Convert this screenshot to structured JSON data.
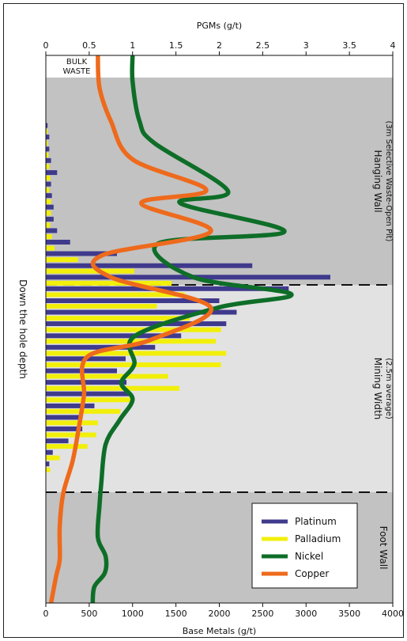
{
  "chart_data": {
    "type": "bar",
    "orientation": "horizontal",
    "x_axis_top": {
      "label": "PGMs (g/t)",
      "ticks": [
        "0",
        "0.5",
        "1",
        "1.5",
        "2",
        "2.5",
        "3",
        "3.5",
        "4"
      ],
      "range": [
        0,
        4
      ]
    },
    "x_axis_bottom": {
      "label": "Base Metals (g/t)",
      "ticks": [
        "0",
        "500",
        "1000",
        "1500",
        "2000",
        "2500",
        "3000",
        "3500",
        "4000"
      ],
      "range": [
        0,
        4000
      ]
    },
    "y_axis": {
      "label": "Down the hole depth"
    },
    "zones": [
      {
        "name": "Bulk Waste",
        "lines": [
          "BULK",
          "WASTE"
        ],
        "color": "#ffffff"
      },
      {
        "name": "Hanging Wall",
        "lines": [
          "Hanging Wall",
          "(3m Selective Waste-Open Pit)"
        ],
        "color": "#c2c2c2"
      },
      {
        "name": "Mining Width",
        "lines": [
          "Mining Width",
          "(2.5m average)"
        ],
        "color": "#e2e2e2"
      },
      {
        "name": "Foot Wall",
        "lines": [
          "Foot Wall"
        ],
        "color": "#c2c2c2"
      }
    ],
    "legend": {
      "position": "bottom-right",
      "entries": [
        {
          "name": "Platinum",
          "color": "#3f3a8c"
        },
        {
          "name": "Palladium",
          "color": "#f2ef0a"
        },
        {
          "name": "Nickel",
          "color": "#0e6e28"
        },
        {
          "name": "Copper",
          "color": "#ee6a1c"
        }
      ]
    },
    "series": [
      {
        "name": "Platinum",
        "axis": "top",
        "points": [
          [
            0.02,
            0.128
          ],
          [
            0.04,
            0.149
          ],
          [
            0.04,
            0.171
          ],
          [
            0.06,
            0.192
          ],
          [
            0.13,
            0.214
          ],
          [
            0.06,
            0.235
          ],
          [
            0.07,
            0.256
          ],
          [
            0.09,
            0.277
          ],
          [
            0.09,
            0.299
          ],
          [
            0.13,
            0.32
          ],
          [
            0.28,
            0.341
          ],
          [
            0.82,
            0.362
          ],
          [
            2.38,
            0.384
          ],
          [
            3.28,
            0.405
          ],
          [
            2.8,
            0.426
          ],
          [
            2.0,
            0.448
          ],
          [
            2.2,
            0.469
          ],
          [
            2.08,
            0.49
          ],
          [
            1.56,
            0.512
          ],
          [
            1.26,
            0.533
          ],
          [
            0.92,
            0.554
          ],
          [
            0.82,
            0.576
          ],
          [
            0.93,
            0.597
          ],
          [
            0.96,
            0.618
          ],
          [
            0.56,
            0.64
          ],
          [
            0.4,
            0.661
          ],
          [
            0.42,
            0.682
          ],
          [
            0.26,
            0.704
          ],
          [
            0.08,
            0.725
          ],
          [
            0.04,
            0.746
          ]
        ]
      },
      {
        "name": "Palladium",
        "axis": "top",
        "points": [
          [
            0.02,
            0.139
          ],
          [
            0.02,
            0.16
          ],
          [
            0.03,
            0.182
          ],
          [
            0.04,
            0.203
          ],
          [
            0.05,
            0.224
          ],
          [
            0.04,
            0.246
          ],
          [
            0.06,
            0.267
          ],
          [
            0.06,
            0.288
          ],
          [
            0.05,
            0.31
          ],
          [
            0.07,
            0.331
          ],
          [
            0.1,
            0.352
          ],
          [
            0.37,
            0.373
          ],
          [
            1.02,
            0.394
          ],
          [
            1.45,
            0.416
          ],
          [
            1.6,
            0.437
          ],
          [
            1.28,
            0.458
          ],
          [
            1.66,
            0.48
          ],
          [
            2.02,
            0.501
          ],
          [
            1.96,
            0.522
          ],
          [
            2.08,
            0.544
          ],
          [
            2.02,
            0.565
          ],
          [
            1.41,
            0.586
          ],
          [
            1.54,
            0.608
          ],
          [
            0.98,
            0.629
          ],
          [
            0.86,
            0.65
          ],
          [
            0.6,
            0.671
          ],
          [
            0.58,
            0.693
          ],
          [
            0.48,
            0.714
          ],
          [
            0.16,
            0.735
          ],
          [
            0.05,
            0.757
          ]
        ]
      },
      {
        "name": "Nickel",
        "axis": "bottom",
        "curve": [
          [
            1000,
            0
          ],
          [
            1000,
            0.048
          ],
          [
            1080,
            0.12
          ],
          [
            1250,
            0.16
          ],
          [
            2100,
            0.248
          ],
          [
            1550,
            0.27
          ],
          [
            2750,
            0.322
          ],
          [
            1300,
            0.343
          ],
          [
            1700,
            0.405
          ],
          [
            2830,
            0.436
          ],
          [
            2000,
            0.46
          ],
          [
            1030,
            0.512
          ],
          [
            1020,
            0.564
          ],
          [
            870,
            0.598
          ],
          [
            1000,
            0.628
          ],
          [
            850,
            0.666
          ],
          [
            690,
            0.71
          ],
          [
            640,
            0.78
          ],
          [
            620,
            0.82
          ],
          [
            600,
            0.88
          ],
          [
            690,
            0.915
          ],
          [
            680,
            0.945
          ],
          [
            560,
            0.97
          ],
          [
            540,
            1.0
          ]
        ]
      },
      {
        "name": "Copper",
        "axis": "bottom",
        "curve": [
          [
            600,
            0
          ],
          [
            620,
            0.06
          ],
          [
            750,
            0.12
          ],
          [
            1000,
            0.19
          ],
          [
            1850,
            0.246
          ],
          [
            1100,
            0.27
          ],
          [
            1900,
            0.322
          ],
          [
            650,
            0.365
          ],
          [
            750,
            0.405
          ],
          [
            1900,
            0.46
          ],
          [
            1200,
            0.52
          ],
          [
            480,
            0.55
          ],
          [
            440,
            0.62
          ],
          [
            380,
            0.68
          ],
          [
            310,
            0.74
          ],
          [
            200,
            0.8
          ],
          [
            160,
            0.86
          ],
          [
            160,
            0.92
          ],
          [
            120,
            0.95
          ],
          [
            60,
            1.0
          ]
        ]
      }
    ]
  }
}
